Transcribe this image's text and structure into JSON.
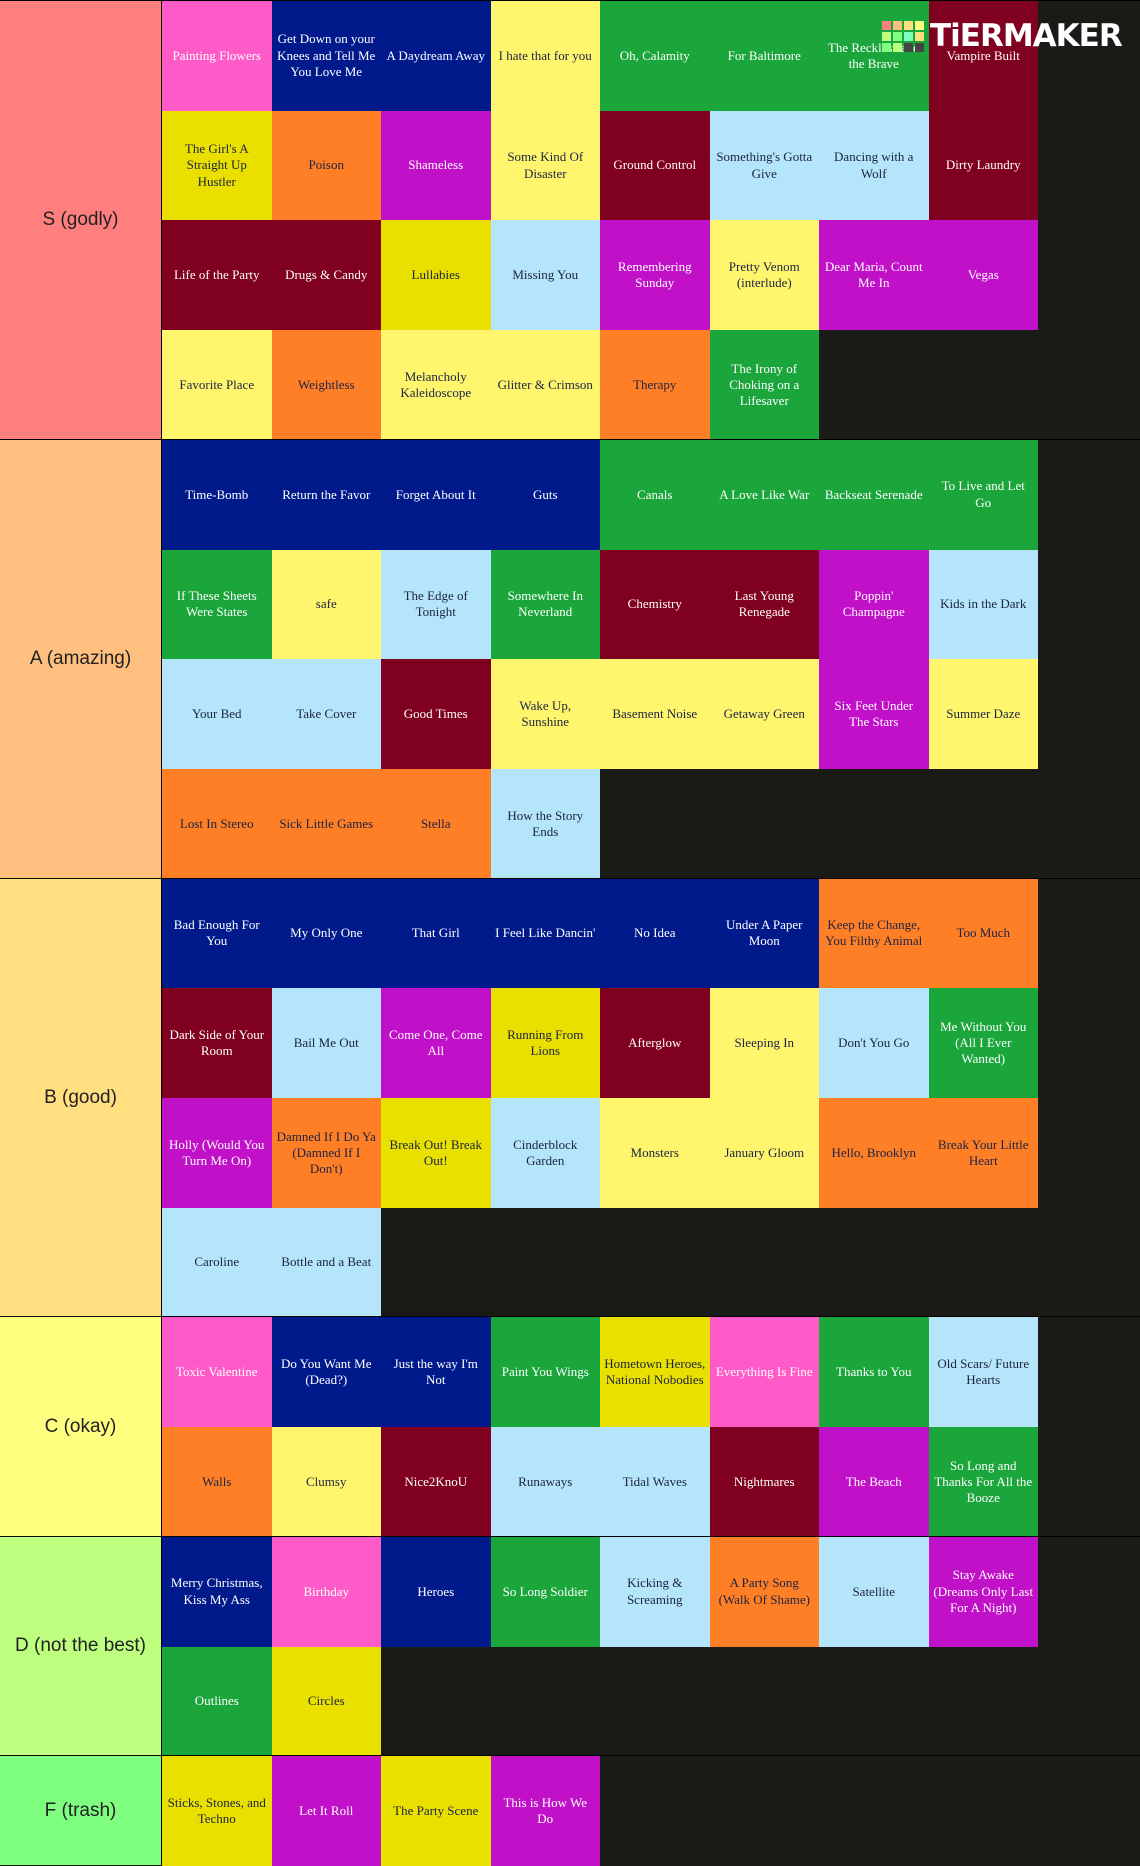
{
  "logo": "TiERMAKER",
  "tiers": [
    {
      "label": "S (godly)",
      "color": "#ff7f7f",
      "items": [
        {
          "text": "Painting Flowers",
          "color": "#ff5bc8"
        },
        {
          "text": "Get Down on your Knees and Tell Me You Love Me",
          "color": "#001a8c"
        },
        {
          "text": "A Daydream Away",
          "color": "#001a8c"
        },
        {
          "text": "I hate that for you",
          "color": "#fff66e"
        },
        {
          "text": "Oh, Calamity",
          "color": "#1ba63c"
        },
        {
          "text": "For Baltimore",
          "color": "#1ba63c"
        },
        {
          "text": "The Reckless and the Brave",
          "color": "#1ba63c"
        },
        {
          "text": "Vampire Built",
          "color": "#80001f"
        },
        {
          "text": "The Girl's A Straight Up Hustler",
          "color": "#e9e000"
        },
        {
          "text": "Poison",
          "color": "#ff7f27"
        },
        {
          "text": "Shameless",
          "color": "#c010c8"
        },
        {
          "text": "Some Kind Of Disaster",
          "color": "#fff66e"
        },
        {
          "text": "Ground Control",
          "color": "#80001f"
        },
        {
          "text": "Something's Gotta Give",
          "color": "#b5e5fa"
        },
        {
          "text": "Dancing with a Wolf",
          "color": "#b5e5fa"
        },
        {
          "text": "Dirty Laundry",
          "color": "#80001f"
        },
        {
          "text": "Life of the Party",
          "color": "#80001f"
        },
        {
          "text": "Drugs & Candy",
          "color": "#80001f"
        },
        {
          "text": "Lullabies",
          "color": "#e9e000"
        },
        {
          "text": "Missing You",
          "color": "#b5e5fa"
        },
        {
          "text": "Remembering Sunday",
          "color": "#c010c8"
        },
        {
          "text": "Pretty Venom (interlude)",
          "color": "#fff66e"
        },
        {
          "text": "Dear Maria, Count Me In",
          "color": "#c010c8"
        },
        {
          "text": "Vegas",
          "color": "#c010c8"
        },
        {
          "text": "Favorite Place",
          "color": "#fff66e"
        },
        {
          "text": "Weightless",
          "color": "#ff7f27"
        },
        {
          "text": "Melancholy Kaleidoscope",
          "color": "#fff66e"
        },
        {
          "text": "Glitter & Crimson",
          "color": "#fff66e"
        },
        {
          "text": "Therapy",
          "color": "#ff7f27"
        },
        {
          "text": "The Irony of Choking on a Lifesaver",
          "color": "#1ba63c"
        }
      ]
    },
    {
      "label": "A (amazing)",
      "color": "#ffbf7f",
      "items": [
        {
          "text": "Time-Bomb",
          "color": "#001a8c"
        },
        {
          "text": "Return the Favor",
          "color": "#001a8c"
        },
        {
          "text": "Forget About It",
          "color": "#001a8c"
        },
        {
          "text": "Guts",
          "color": "#001a8c"
        },
        {
          "text": "Canals",
          "color": "#1ba63c"
        },
        {
          "text": "A Love Like War",
          "color": "#1ba63c"
        },
        {
          "text": "Backseat Serenade",
          "color": "#1ba63c"
        },
        {
          "text": "To Live and Let Go",
          "color": "#1ba63c"
        },
        {
          "text": "If These Sheets Were States",
          "color": "#1ba63c"
        },
        {
          "text": "safe",
          "color": "#fff66e"
        },
        {
          "text": "The Edge of Tonight",
          "color": "#b5e5fa"
        },
        {
          "text": "Somewhere In Neverland",
          "color": "#1ba63c"
        },
        {
          "text": "Chemistry",
          "color": "#80001f"
        },
        {
          "text": "Last Young Renegade",
          "color": "#80001f"
        },
        {
          "text": "Poppin' Champagne",
          "color": "#c010c8"
        },
        {
          "text": "Kids in the Dark",
          "color": "#b5e5fa"
        },
        {
          "text": "Your Bed",
          "color": "#b5e5fa"
        },
        {
          "text": "Take Cover",
          "color": "#b5e5fa"
        },
        {
          "text": "Good Times",
          "color": "#80001f"
        },
        {
          "text": "Wake Up, Sunshine",
          "color": "#fff66e"
        },
        {
          "text": "Basement Noise",
          "color": "#fff66e"
        },
        {
          "text": "Getaway Green",
          "color": "#fff66e"
        },
        {
          "text": "Six Feet Under The Stars",
          "color": "#c010c8"
        },
        {
          "text": "Summer Daze",
          "color": "#fff66e"
        },
        {
          "text": "Lost In Stereo",
          "color": "#ff7f27"
        },
        {
          "text": "Sick Little Games",
          "color": "#ff7f27"
        },
        {
          "text": "Stella",
          "color": "#ff7f27"
        },
        {
          "text": "How the Story Ends",
          "color": "#b5e5fa"
        }
      ]
    },
    {
      "label": "B (good)",
      "color": "#ffdf7f",
      "items": [
        {
          "text": "Bad Enough For You",
          "color": "#001a8c"
        },
        {
          "text": "My Only One",
          "color": "#001a8c"
        },
        {
          "text": "That Girl",
          "color": "#001a8c"
        },
        {
          "text": "I Feel Like Dancin'",
          "color": "#001a8c"
        },
        {
          "text": "No Idea",
          "color": "#001a8c"
        },
        {
          "text": "Under A Paper Moon",
          "color": "#001a8c"
        },
        {
          "text": "Keep the Change, You Filthy Animal",
          "color": "#ff7f27"
        },
        {
          "text": "Too Much",
          "color": "#ff7f27"
        },
        {
          "text": "Dark Side of Your Room",
          "color": "#80001f"
        },
        {
          "text": "Bail Me Out",
          "color": "#b5e5fa"
        },
        {
          "text": "Come One, Come All",
          "color": "#c010c8"
        },
        {
          "text": "Running From Lions",
          "color": "#e9e000"
        },
        {
          "text": "Afterglow",
          "color": "#80001f"
        },
        {
          "text": "Sleeping In",
          "color": "#fff66e"
        },
        {
          "text": "Don't You Go",
          "color": "#b5e5fa"
        },
        {
          "text": "Me Without You (All I Ever Wanted)",
          "color": "#1ba63c"
        },
        {
          "text": "Holly (Would You Turn Me On)",
          "color": "#c010c8"
        },
        {
          "text": "Damned If I Do Ya (Damned If I Don't)",
          "color": "#ff7f27"
        },
        {
          "text": "Break Out! Break Out!",
          "color": "#e9e000"
        },
        {
          "text": "Cinderblock Garden",
          "color": "#b5e5fa"
        },
        {
          "text": "Monsters",
          "color": "#fff66e"
        },
        {
          "text": "January Gloom",
          "color": "#fff66e"
        },
        {
          "text": "Hello, Brooklyn",
          "color": "#ff7f27"
        },
        {
          "text": "Break Your Little Heart",
          "color": "#ff7f27"
        },
        {
          "text": "Caroline",
          "color": "#b5e5fa"
        },
        {
          "text": "Bottle and a Beat",
          "color": "#b5e5fa"
        }
      ]
    },
    {
      "label": "C (okay)",
      "color": "#ffff7f",
      "items": [
        {
          "text": "Toxic Valentine",
          "color": "#ff5bc8"
        },
        {
          "text": "Do You Want Me (Dead?)",
          "color": "#001a8c"
        },
        {
          "text": "Just the way I'm Not",
          "color": "#001a8c"
        },
        {
          "text": "Paint You Wings",
          "color": "#1ba63c"
        },
        {
          "text": "Hometown Heroes, National Nobodies",
          "color": "#e9e000"
        },
        {
          "text": "Everything Is Fine",
          "color": "#ff5bc8"
        },
        {
          "text": "Thanks to You",
          "color": "#1ba63c"
        },
        {
          "text": "Old Scars/ Future Hearts",
          "color": "#b5e5fa"
        },
        {
          "text": "Walls",
          "color": "#ff7f27"
        },
        {
          "text": "Clumsy",
          "color": "#fff66e"
        },
        {
          "text": "Nice2KnoU",
          "color": "#80001f"
        },
        {
          "text": "Runaways",
          "color": "#b5e5fa"
        },
        {
          "text": "Tidal Waves",
          "color": "#b5e5fa"
        },
        {
          "text": "Nightmares",
          "color": "#80001f"
        },
        {
          "text": "The Beach",
          "color": "#c010c8"
        },
        {
          "text": "So Long and Thanks For All the Booze",
          "color": "#1ba63c"
        }
      ]
    },
    {
      "label": "D (not the best)",
      "color": "#bfff7f",
      "items": [
        {
          "text": "Merry Christmas, Kiss My Ass",
          "color": "#001a8c"
        },
        {
          "text": "Birthday",
          "color": "#ff5bc8"
        },
        {
          "text": "Heroes",
          "color": "#001a8c"
        },
        {
          "text": "So Long Soldier",
          "color": "#1ba63c"
        },
        {
          "text": "Kicking & Screaming",
          "color": "#b5e5fa"
        },
        {
          "text": "A Party Song (Walk Of Shame)",
          "color": "#ff7f27"
        },
        {
          "text": "Satellite",
          "color": "#b5e5fa"
        },
        {
          "text": "Stay Awake (Dreams Only Last For A Night)",
          "color": "#c010c8"
        },
        {
          "text": "Outlines",
          "color": "#1ba63c"
        },
        {
          "text": "Circles",
          "color": "#e9e000"
        }
      ]
    },
    {
      "label": "F (trash)",
      "color": "#7fff7f",
      "items": [
        {
          "text": "Sticks, Stones, and Techno",
          "color": "#e9e000"
        },
        {
          "text": "Let It Roll",
          "color": "#c010c8"
        },
        {
          "text": "The Party Scene",
          "color": "#e9e000"
        },
        {
          "text": "This is How We Do",
          "color": "#c010c8"
        }
      ]
    }
  ]
}
